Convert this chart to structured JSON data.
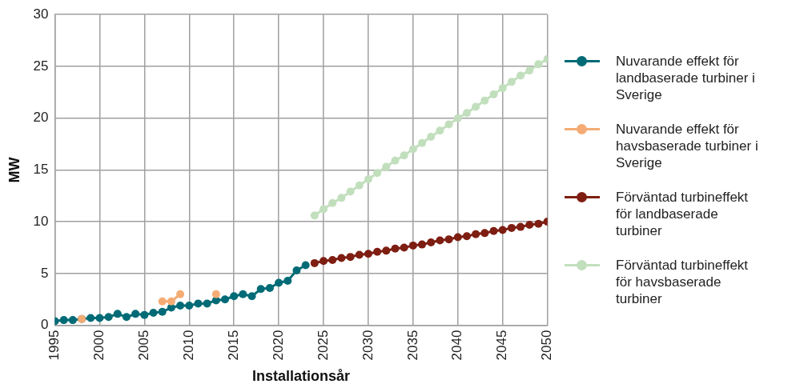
{
  "chart_data": {
    "type": "line",
    "xlabel": "Installationsår",
    "ylabel": "MW",
    "xlim": [
      1995,
      2050
    ],
    "xticks": [
      1995,
      2000,
      2005,
      2010,
      2015,
      2020,
      2025,
      2030,
      2035,
      2040,
      2045,
      2050
    ],
    "ylim": [
      0,
      30
    ],
    "yticks": [
      0,
      5,
      10,
      15,
      20,
      25,
      30
    ],
    "grid": true,
    "legend": "right",
    "marker": "circle",
    "line_style": "solid",
    "series": [
      {
        "name": "Nuvarande effekt för landbaserade turbiner i Sverige",
        "color": "#006b76",
        "x": [
          1995,
          1996,
          1997,
          1998,
          1999,
          2000,
          2001,
          2002,
          2003,
          2004,
          2005,
          2006,
          2007,
          2008,
          2009,
          2010,
          2011,
          2012,
          2013,
          2014,
          2015,
          2016,
          2017,
          2018,
          2019,
          2020,
          2021,
          2022,
          2023
        ],
        "values": [
          0.4,
          0.5,
          0.5,
          0.6,
          0.7,
          0.7,
          0.8,
          1.1,
          0.8,
          1.1,
          1.0,
          1.2,
          1.3,
          1.7,
          1.9,
          1.9,
          2.1,
          2.1,
          2.4,
          2.5,
          2.8,
          3.0,
          2.8,
          3.5,
          3.6,
          4.1,
          4.3,
          5.3,
          5.8
        ]
      },
      {
        "name": "Nuvarande effekt för havsbaserade turbiner i Sverige",
        "color": "#f4ac74",
        "x": [
          1998,
          1999,
          2007,
          2008,
          2009,
          2010,
          2013
        ],
        "values": [
          0.6,
          null,
          2.3,
          2.3,
          3.0,
          null,
          3.0
        ]
      },
      {
        "name": "Förväntad turbineffekt för landbaserade turbiner",
        "color": "#7e1e12",
        "x": [
          2024,
          2025,
          2026,
          2027,
          2028,
          2029,
          2030,
          2031,
          2032,
          2033,
          2034,
          2035,
          2036,
          2037,
          2038,
          2039,
          2040,
          2041,
          2042,
          2043,
          2044,
          2045,
          2046,
          2047,
          2048,
          2049,
          2050
        ],
        "values": [
          6.0,
          6.2,
          6.3,
          6.5,
          6.6,
          6.8,
          6.9,
          7.1,
          7.2,
          7.4,
          7.5,
          7.7,
          7.8,
          8.0,
          8.2,
          8.3,
          8.5,
          8.6,
          8.8,
          8.9,
          9.1,
          9.2,
          9.4,
          9.5,
          9.7,
          9.8,
          10.0
        ]
      },
      {
        "name": "Förväntad turbineffekt för havsbaserade turbiner",
        "color": "#c2dfbd",
        "x": [
          2024,
          2025,
          2026,
          2027,
          2028,
          2029,
          2030,
          2031,
          2032,
          2033,
          2034,
          2035,
          2036,
          2037,
          2038,
          2039,
          2040,
          2041,
          2042,
          2043,
          2044,
          2045,
          2046,
          2047,
          2048,
          2049,
          2050
        ],
        "values": [
          10.6,
          11.2,
          11.8,
          12.3,
          12.9,
          13.5,
          14.1,
          14.7,
          15.3,
          15.9,
          16.4,
          17.0,
          17.6,
          18.2,
          18.8,
          19.4,
          20.0,
          20.5,
          21.1,
          21.7,
          22.3,
          22.9,
          23.5,
          24.1,
          24.6,
          25.2,
          25.7
        ]
      }
    ]
  }
}
